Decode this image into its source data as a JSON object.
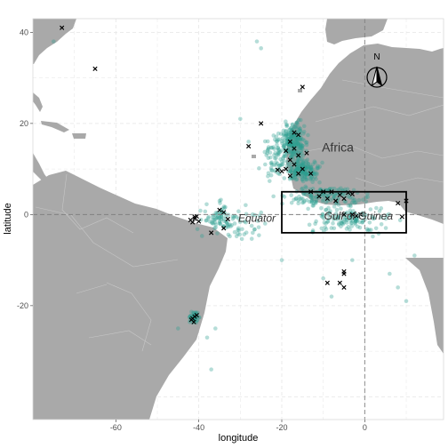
{
  "chart_data": {
    "type": "scatter",
    "xlabel": "longitude",
    "ylabel": "latitude",
    "xlim": [
      -80,
      19
    ],
    "ylim": [
      -45,
      43
    ],
    "x_ticks": [
      -60,
      -40,
      -20,
      0
    ],
    "y_ticks": [
      40,
      20,
      0,
      -20
    ],
    "x_tick_labels": [
      "-60",
      "-40",
      "-20",
      "0"
    ],
    "y_tick_labels": [
      "40",
      "20",
      "0",
      "-20"
    ],
    "grid": true,
    "colors": {
      "land": "#a9a9a9",
      "ocean": "#ffffff",
      "border": "#c7c7c7",
      "points": "#2a9d8f",
      "crosses": "#000000",
      "rectangle": "#000000",
      "reference_lines": "#808080"
    },
    "reference_lines": [
      {
        "axis": "y",
        "value": 0,
        "style": "dashed",
        "label": "Equator",
        "label_lon": -26
      },
      {
        "axis": "x",
        "value": 0,
        "style": "dashed"
      }
    ],
    "annotations": [
      {
        "text": "Africa",
        "lon": -6.5,
        "lat": 14.8
      },
      {
        "text": "Gulf of Guinea",
        "lon": -1.5,
        "lat": -0.3
      }
    ],
    "study_box": {
      "lon_min": -20,
      "lon_max": 10,
      "lat_min": -4,
      "lat_max": 5
    },
    "north_arrow": {
      "label": "N"
    },
    "clusters": [
      {
        "lon": -17,
        "lat": 16,
        "spread_lon": 3,
        "spread_lat": 4,
        "n": 200
      },
      {
        "lon": -15,
        "lat": 9.5,
        "spread_lon": 4,
        "spread_lat": 2.5,
        "n": 160
      },
      {
        "lon": -21,
        "lat": 13,
        "spread_lon": 4,
        "spread_lat": 5,
        "n": 90
      },
      {
        "lon": -9,
        "lat": 4,
        "spread_lon": 9,
        "spread_lat": 2.5,
        "n": 140
      },
      {
        "lon": -4,
        "lat": -1,
        "spread_lon": 10,
        "spread_lat": 3,
        "n": 130
      },
      {
        "lon": -35,
        "lat": -1,
        "spread_lon": 5,
        "spread_lat": 3,
        "n": 70
      },
      {
        "lon": -41,
        "lat": -22.5,
        "spread_lon": 1.2,
        "spread_lat": 1.2,
        "n": 40
      },
      {
        "lon": -29,
        "lat": -2,
        "spread_lon": 5,
        "spread_lat": 4,
        "n": 40
      }
    ],
    "scattered_points": [
      [
        -75,
        38
      ],
      [
        -26,
        38
      ],
      [
        -25,
        36.5
      ],
      [
        -30,
        21
      ],
      [
        -28,
        16
      ],
      [
        -24,
        11
      ],
      [
        -22,
        4
      ],
      [
        -35,
        3
      ],
      [
        -27,
        -4
      ],
      [
        -38,
        -27
      ],
      [
        -37,
        -34
      ],
      [
        -20,
        -10
      ],
      [
        -10,
        -14
      ],
      [
        -8,
        -18
      ],
      [
        -3,
        -10
      ],
      [
        8,
        -16
      ],
      [
        10,
        -19
      ],
      [
        12,
        -9
      ],
      [
        6,
        -13
      ],
      [
        -45,
        -25
      ],
      [
        -36,
        -25
      ]
    ],
    "crosses": [
      [
        -73,
        41
      ],
      [
        -65,
        32
      ],
      [
        -15,
        28
      ],
      [
        -25,
        20
      ],
      [
        -28,
        15
      ],
      [
        -17,
        18
      ],
      [
        -16,
        17.5
      ],
      [
        -18,
        16
      ],
      [
        -17,
        14.5
      ],
      [
        -16,
        13
      ],
      [
        -18,
        12
      ],
      [
        -17,
        11
      ],
      [
        -19,
        10
      ],
      [
        -20,
        9.5
      ],
      [
        -16,
        9
      ],
      [
        -13,
        9
      ],
      [
        -18,
        8.5
      ],
      [
        -15,
        10
      ],
      [
        -21,
        9.8
      ],
      [
        -14,
        13.5
      ],
      [
        -19,
        14
      ],
      [
        -13,
        5
      ],
      [
        -11,
        4
      ],
      [
        -9,
        3.5
      ],
      [
        -7,
        3
      ],
      [
        -5,
        3.5
      ],
      [
        -4,
        4.8
      ],
      [
        -3,
        4.5
      ],
      [
        -8,
        5
      ],
      [
        -6,
        4.3
      ],
      [
        -10,
        5
      ],
      [
        -3,
        0
      ],
      [
        -2,
        -0.3
      ],
      [
        -5,
        0
      ],
      [
        10,
        3
      ],
      [
        8,
        2.5
      ],
      [
        9,
        -0.5
      ],
      [
        -1,
        0
      ],
      [
        -35,
        1
      ],
      [
        -34,
        0.5
      ],
      [
        -41,
        -0.5
      ],
      [
        -42,
        -1.2
      ],
      [
        -40,
        -1.5
      ],
      [
        -41,
        -0.9
      ],
      [
        -41.5,
        -1.7
      ],
      [
        -40.5,
        -0.4
      ],
      [
        -33,
        -1
      ],
      [
        -37,
        -4
      ],
      [
        -34,
        -3
      ],
      [
        -41,
        -22.4
      ],
      [
        -41.5,
        -22.8
      ],
      [
        -40.5,
        -22.1
      ],
      [
        -41.8,
        -23.1
      ],
      [
        -41.2,
        -23.6
      ],
      [
        -5,
        -12.5
      ],
      [
        -5,
        -13
      ],
      [
        -6,
        -15
      ],
      [
        -5,
        -16
      ],
      [
        -9,
        -15
      ]
    ]
  }
}
